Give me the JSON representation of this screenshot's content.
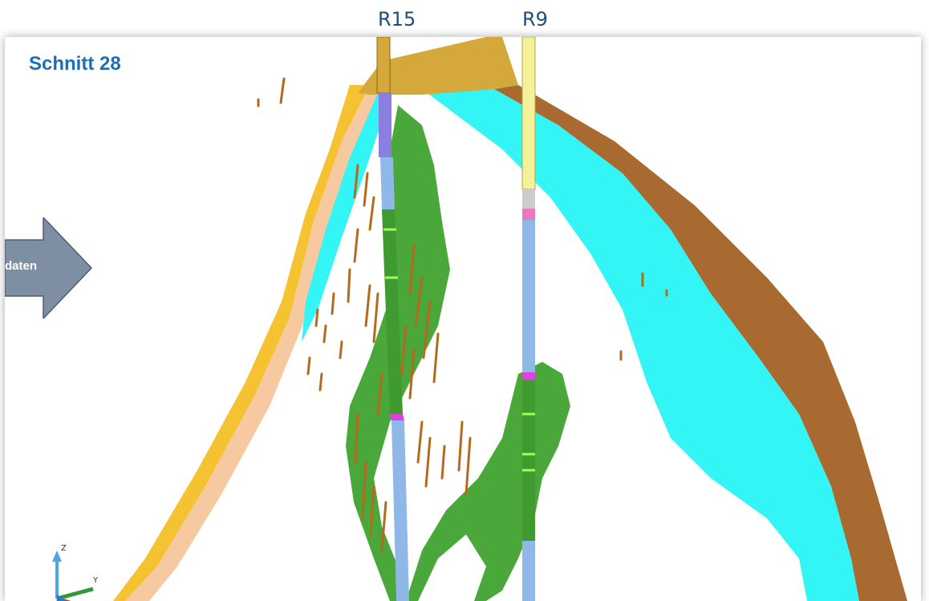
{
  "wells": [
    {
      "id": "R15",
      "label": "R15"
    },
    {
      "id": "R9",
      "label": "R9"
    }
  ],
  "section_title": "Schnitt 28",
  "arrow_label": "daten",
  "axes_icon": {
    "z_label": "Z",
    "y_label": "Y"
  },
  "colors": {
    "title": "#1f6fb2",
    "well_label": "#1f4e79",
    "arrow": "#7f8fa3",
    "orange_layer": "#f5c232",
    "peach_layer": "#f7c9a0",
    "cyan_layer": "#33f5f5",
    "brown_layer": "#a86a30",
    "gold_cap": "#d4a83a",
    "green_body": "#4aa83a",
    "well_blue": "#8fb8e8",
    "well_purple": "#8a7fe0",
    "magenta_mark": "#e040e0",
    "fracture_brown": "#b36b1f"
  }
}
